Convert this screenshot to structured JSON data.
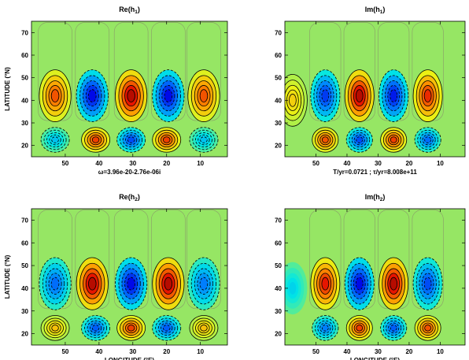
{
  "chart_data": [
    {
      "type": "heatmap",
      "title_main": "Re(h",
      "title_sub": "1",
      "title_close": ")",
      "xlabel": "",
      "ylabel": "LATITUDE (°N)",
      "annotation": "ω=3.96e-20-2.76e-06i",
      "x_ticks": [
        "50",
        "40",
        "30",
        "20",
        "10"
      ],
      "y_ticks": [
        "20",
        "30",
        "40",
        "50",
        "60",
        "70"
      ],
      "xlim": [
        60,
        2
      ],
      "ylim": [
        15,
        75
      ],
      "upper_cells": [
        {
          "lon": 53,
          "lat": 42,
          "amp": 0.7
        },
        {
          "lon": 42,
          "lat": 42,
          "amp": -0.9
        },
        {
          "lon": 30.5,
          "lat": 42,
          "amp": 1.0
        },
        {
          "lon": 19.5,
          "lat": 42,
          "amp": -0.9
        },
        {
          "lon": 9,
          "lat": 42,
          "amp": 0.7
        }
      ],
      "lower_cells": [
        {
          "lon": 53,
          "lat": 22.5,
          "amp": -0.35
        },
        {
          "lon": 41,
          "lat": 22.5,
          "amp": 0.75
        },
        {
          "lon": 30.5,
          "lat": 22.5,
          "amp": -0.7
        },
        {
          "lon": 20,
          "lat": 22.5,
          "amp": 0.75
        },
        {
          "lon": 9,
          "lat": 22.5,
          "amp": -0.35
        }
      ]
    },
    {
      "type": "heatmap",
      "title_main": "Im(h",
      "title_sub": "1",
      "title_close": ")",
      "xlabel": "",
      "ylabel": "",
      "annotation": "T/yr=0.0721 ;  τ/yr=8.008e+11",
      "x_ticks": [
        "50",
        "40",
        "30",
        "20",
        "10"
      ],
      "y_ticks": [
        "20",
        "30",
        "40",
        "50",
        "60",
        "70"
      ],
      "xlim": [
        60,
        2
      ],
      "ylim": [
        15,
        75
      ],
      "upper_cells": [
        {
          "lon": 57.5,
          "lat": 40,
          "amp": 0.35
        },
        {
          "lon": 47,
          "lat": 42,
          "amp": -0.75
        },
        {
          "lon": 36,
          "lat": 42,
          "amp": 1.0
        },
        {
          "lon": 25,
          "lat": 42,
          "amp": -0.85
        },
        {
          "lon": 14,
          "lat": 42,
          "amp": 0.8
        }
      ],
      "lower_cells": [
        {
          "lon": 47,
          "lat": 22.5,
          "amp": 0.7
        },
        {
          "lon": 36,
          "lat": 22.5,
          "amp": -0.7
        },
        {
          "lon": 25,
          "lat": 22.5,
          "amp": 0.75
        },
        {
          "lon": 14,
          "lat": 22.5,
          "amp": -0.6
        }
      ]
    },
    {
      "type": "heatmap",
      "title_main": "Re(h",
      "title_sub": "2",
      "title_close": ")",
      "xlabel": "LONGITUDE (°E)",
      "ylabel": "LATITUDE (°N)",
      "annotation": "",
      "x_ticks": [
        "50",
        "40",
        "30",
        "20",
        "10"
      ],
      "y_ticks": [
        "20",
        "30",
        "40",
        "50",
        "60",
        "70"
      ],
      "xlim": [
        60,
        2
      ],
      "ylim": [
        15,
        75
      ],
      "upper_cells": [
        {
          "lon": 53,
          "lat": 42,
          "amp": -0.6
        },
        {
          "lon": 42,
          "lat": 42,
          "amp": 1.0
        },
        {
          "lon": 30.5,
          "lat": 42,
          "amp": -0.9
        },
        {
          "lon": 19.5,
          "lat": 42,
          "amp": 1.0
        },
        {
          "lon": 9,
          "lat": 42,
          "amp": -0.55
        }
      ],
      "lower_cells": [
        {
          "lon": 53,
          "lat": 22.5,
          "amp": 0.4
        },
        {
          "lon": 41,
          "lat": 22.5,
          "amp": -0.65
        },
        {
          "lon": 30.5,
          "lat": 22.5,
          "amp": 0.75
        },
        {
          "lon": 20,
          "lat": 22.5,
          "amp": -0.65
        },
        {
          "lon": 9,
          "lat": 22.5,
          "amp": 0.4
        }
      ]
    },
    {
      "type": "heatmap",
      "title_main": "Im(h",
      "title_sub": "2",
      "title_close": ")",
      "xlabel": "LONGITUDE (°E)",
      "ylabel": "",
      "annotation": "",
      "x_ticks": [
        "50",
        "40",
        "30",
        "20",
        "10"
      ],
      "y_ticks": [
        "20",
        "30",
        "40",
        "50",
        "60",
        "70"
      ],
      "xlim": [
        60,
        2
      ],
      "ylim": [
        15,
        75
      ],
      "upper_cells": [
        {
          "lon": 57.5,
          "lat": 40,
          "amp": -0.3
        },
        {
          "lon": 47,
          "lat": 42,
          "amp": 0.85
        },
        {
          "lon": 36,
          "lat": 42,
          "amp": -0.9
        },
        {
          "lon": 25,
          "lat": 42,
          "amp": 1.0
        },
        {
          "lon": 14,
          "lat": 42,
          "amp": -0.7
        }
      ],
      "lower_cells": [
        {
          "lon": 47,
          "lat": 22.5,
          "amp": -0.55
        },
        {
          "lon": 36,
          "lat": 22.5,
          "amp": 0.75
        },
        {
          "lon": 25,
          "lat": 22.5,
          "amp": -0.65
        },
        {
          "lon": 14,
          "lat": 22.5,
          "amp": 0.7
        }
      ]
    }
  ]
}
